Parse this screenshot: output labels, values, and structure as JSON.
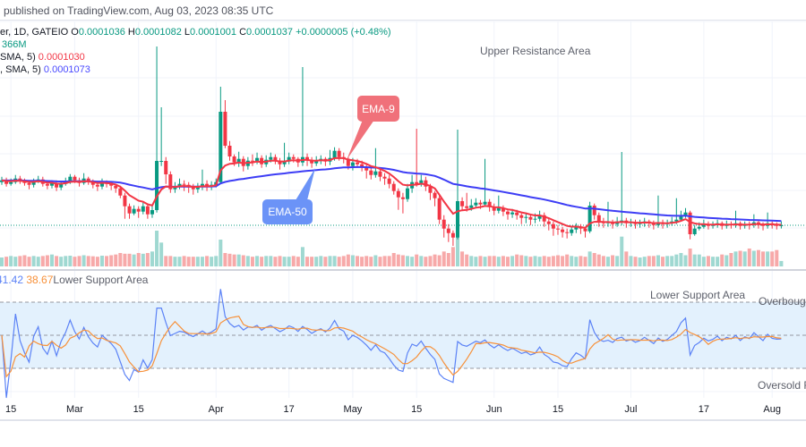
{
  "header": {
    "published": "published on TradingView.com, Aug 03, 2023 08:35 UTC"
  },
  "legend": {
    "symbol": "er, 1D, GATEIO",
    "ohlc": [
      {
        "k": "O",
        "v": "0.0001036"
      },
      {
        "k": "H",
        "v": "0.0001082"
      },
      {
        "k": "L",
        "v": "0.0001001"
      },
      {
        "k": "C",
        "v": "0.0001037"
      }
    ],
    "change": "+0.0000005 (+0.48%)",
    "volume": "366M",
    "ema9_label": "SMA, 5)",
    "ema9_value": "0.0001030",
    "ema50_label": ", SMA, 5)",
    "ema50_value": "0.0001073"
  },
  "annotations": {
    "upper_resistance": "Upper Resistance Area",
    "ema9_callout": "EMA-9",
    "ema50_callout": "EMA-50",
    "rsi_lower_support_left": "Lower Support Area",
    "rsi_lower_support_right": "Lower Support Area",
    "overbought": "Overbought",
    "oversold": "Oversold R"
  },
  "rsi_legend": {
    "rsi_value": "41.42",
    "ma_value": "38.67"
  },
  "colors": {
    "up": "#089981",
    "down": "#f23645",
    "vol_up": "#9fd8d1",
    "vol_down": "#f7a9a9",
    "ema9": "#f23645",
    "ema50": "#3d3df5",
    "rsi": "#5b82f6",
    "rsi_ma": "#f7913a",
    "rsi_band": "#e3f1fd",
    "callout_ema9": "#f0717a",
    "callout_ema50": "#6b93f7"
  },
  "chart_data": {
    "type": "candlestick",
    "interval": "1D",
    "last_date": "2023-08-03",
    "indicators": [
      "EMA 9",
      "EMA 50",
      "Volume",
      "RSI 14",
      "RSI MA"
    ],
    "rsi_levels": [
      70,
      50,
      30
    ],
    "x_ticks": [
      {
        "label": "15",
        "date": "2023-02-15"
      },
      {
        "label": "Mar",
        "date": "2023-03-01"
      },
      {
        "label": "15",
        "date": "2023-03-15"
      },
      {
        "label": "Apr",
        "date": "2023-04-01"
      },
      {
        "label": "17",
        "date": "2023-04-17"
      },
      {
        "label": "May",
        "date": "2023-05-01"
      },
      {
        "label": "15",
        "date": "2023-05-15"
      },
      {
        "label": "Jun",
        "date": "2023-06-01"
      },
      {
        "label": "15",
        "date": "2023-06-15"
      },
      {
        "label": "Jul",
        "date": "2023-07-01"
      },
      {
        "label": "17",
        "date": "2023-07-17"
      },
      {
        "label": "Aug",
        "date": "2023-08-01"
      }
    ],
    "candle_fields": [
      "open",
      "high",
      "low",
      "close"
    ],
    "candles": [
      [
        0.000152,
        0.000158,
        0.000149,
        0.000154
      ],
      [
        0.000154,
        0.000157,
        0.000147,
        0.00015
      ],
      [
        0.00015,
        0.000156,
        0.000148,
        0.000152
      ],
      [
        0.000152,
        0.00016,
        0.00015,
        0.000156
      ],
      [
        0.000156,
        0.000159,
        0.00015,
        0.000153
      ],
      [
        0.000153,
        0.000156,
        0.000148,
        0.000151
      ],
      [
        0.000151,
        0.000154,
        0.000144,
        0.000149
      ],
      [
        0.000149,
        0.000156,
        0.000146,
        0.000153
      ],
      [
        0.000153,
        0.000159,
        0.000151,
        0.000155
      ],
      [
        0.000155,
        0.000158,
        0.000147,
        0.00015
      ],
      [
        0.00015,
        0.000153,
        0.000144,
        0.000148
      ],
      [
        0.000148,
        0.000154,
        0.000145,
        0.000151
      ],
      [
        0.000151,
        0.000154,
        0.000142,
        0.000146
      ],
      [
        0.000146,
        0.000153,
        0.000143,
        0.00015
      ],
      [
        0.00015,
        0.000157,
        0.000148,
        0.000153
      ],
      [
        0.000153,
        0.000161,
        0.00015,
        0.000158
      ],
      [
        0.000158,
        0.00016,
        0.000151,
        0.000154
      ],
      [
        0.000154,
        0.000157,
        0.000147,
        0.000151
      ],
      [
        0.000151,
        0.000162,
        0.000149,
        0.000156
      ],
      [
        0.000156,
        0.000158,
        0.000149,
        0.000152
      ],
      [
        0.000152,
        0.000155,
        0.000145,
        0.000149
      ],
      [
        0.000149,
        0.000152,
        0.000142,
        0.000147
      ],
      [
        0.000147,
        0.000156,
        0.000144,
        0.000152
      ],
      [
        0.000152,
        0.000154,
        0.000146,
        0.00015
      ],
      [
        0.00015,
        0.000153,
        0.000143,
        0.000148
      ],
      [
        0.000148,
        0.00015,
        0.00014,
        0.000145
      ],
      [
        0.000145,
        0.000148,
        0.000134,
        0.000137
      ],
      [
        0.000137,
        0.00014,
        0.000111,
        0.000125
      ],
      [
        0.000125,
        0.000128,
        0.000111,
        0.000117
      ],
      [
        0.000117,
        0.000126,
        0.000115,
        0.000122
      ],
      [
        0.000122,
        0.000125,
        0.000112,
        0.000119
      ],
      [
        0.000119,
        0.00013,
        0.000116,
        0.000125
      ],
      [
        0.000125,
        0.000128,
        0.000111,
        0.000116
      ],
      [
        0.000116,
        0.000126,
        0.000112,
        0.0001207
      ],
      [
        0.0001207,
        0.0003037,
        0.000118,
        0.0001757
      ],
      [
        0.0001757,
        0.0002357,
        0.00017,
        0.0001757
      ],
      [
        0.0001757,
        0.00018,
        0.00015,
        0.0001607
      ],
      [
        0.0001607,
        0.000164,
        0.00014,
        0.000144
      ],
      [
        0.000144,
        0.000152,
        0.00014,
        0.000147
      ],
      [
        0.000147,
        0.000156,
        0.000144,
        0.00015
      ],
      [
        0.00015,
        0.000154,
        0.000142,
        0.000149
      ],
      [
        0.000149,
        0.000152,
        0.00014,
        0.000146
      ],
      [
        0.000146,
        0.00015,
        0.000138,
        0.000144
      ],
      [
        0.000144,
        0.000151,
        0.00014,
        0.000147
      ],
      [
        0.000147,
        0.000166,
        0.000143,
        0.00015
      ],
      [
        0.00015,
        0.000154,
        0.000142,
        0.000147
      ],
      [
        0.000147,
        0.000153,
        0.000143,
        0.000149
      ],
      [
        0.000149,
        0.000156,
        0.000146,
        0.000152
      ],
      [
        0.000152,
        0.0002587,
        0.00015,
        0.0002307
      ],
      [
        0.0002307,
        0.0002437,
        0.00019,
        0.0001927
      ],
      [
        0.0001927,
        0.000198,
        0.000176,
        0.0001807
      ],
      [
        0.0001807,
        0.000183,
        0.00017,
        0.000174
      ],
      [
        0.000174,
        0.000186,
        0.000169,
        0.000178
      ],
      [
        0.000178,
        0.000181,
        0.000164,
        0.00017
      ],
      [
        0.00017,
        0.00018,
        0.000166,
        0.000176
      ],
      [
        0.000176,
        0.000183,
        0.00017,
        0.000175
      ],
      [
        0.000175,
        0.000185,
        0.000172,
        0.000179
      ],
      [
        0.000179,
        0.000182,
        0.000168,
        0.000172
      ],
      [
        0.000172,
        0.000182,
        0.000169,
        0.000177
      ],
      [
        0.000177,
        0.000185,
        0.000174,
        0.00018
      ],
      [
        0.00018,
        0.000183,
        0.000172,
        0.000176
      ],
      [
        0.000176,
        0.000179,
        0.000166,
        0.000172
      ],
      [
        0.000172,
        0.000196,
        0.000169,
        0.000175
      ],
      [
        0.000175,
        0.000185,
        0.000172,
        0.00018
      ],
      [
        0.00018,
        0.000183,
        0.000174,
        0.000178
      ],
      [
        0.000178,
        0.00018,
        0.000169,
        0.000174
      ],
      [
        0.000174,
        0.0002807,
        0.00017,
        0.00018
      ],
      [
        0.00018,
        0.000184,
        0.00017,
        0.000177
      ],
      [
        0.000177,
        0.00018,
        0.000168,
        0.000173
      ],
      [
        0.000173,
        0.000181,
        0.00017,
        0.000176
      ],
      [
        0.000176,
        0.000182,
        0.000172,
        0.000178
      ],
      [
        0.000178,
        0.00018,
        0.00017,
        0.000175
      ],
      [
        0.000175,
        0.000188,
        0.000171,
        0.000179
      ],
      [
        0.000179,
        0.000191,
        0.000176,
        0.000187
      ],
      [
        0.000187,
        0.00019,
        0.000176,
        0.00018
      ],
      [
        0.00018,
        0.000185,
        0.000173,
        0.000178
      ],
      [
        0.000178,
        0.00018,
        0.000166,
        0.00017
      ],
      [
        0.00017,
        0.000179,
        0.000165,
        0.000174
      ],
      [
        0.000174,
        0.000178,
        0.000168,
        0.000172
      ],
      [
        0.000172,
        0.000176,
        0.000164,
        0.000169
      ],
      [
        0.000169,
        0.000172,
        0.000156,
        0.000165
      ],
      [
        0.000165,
        0.000168,
        0.000155,
        0.00016
      ],
      [
        0.00016,
        0.00019,
        0.000157,
        0.000164
      ],
      [
        0.000164,
        0.000168,
        0.000153,
        0.000158
      ],
      [
        0.000158,
        0.000162,
        0.000149,
        0.000156
      ],
      [
        0.000156,
        0.00016,
        0.000145,
        0.00015
      ],
      [
        0.00015,
        0.000153,
        0.000138,
        0.000142
      ],
      [
        0.000142,
        0.000145,
        0.000121,
        0.000135
      ],
      [
        0.000135,
        0.00014,
        0.000117,
        0.000133
      ],
      [
        0.000133,
        0.00015,
        0.00013,
        0.000145
      ],
      [
        0.000145,
        0.00016,
        0.00014,
        0.000152
      ],
      [
        0.000152,
        0.0002117,
        0.000147,
        0.00015
      ],
      [
        0.00015,
        0.00016,
        0.000147,
        0.000154
      ],
      [
        0.000154,
        0.000158,
        0.000142,
        0.000147
      ],
      [
        0.000147,
        0.00015,
        0.000132,
        0.00014
      ],
      [
        0.00014,
        0.000142,
        0.000125,
        0.000134
      ],
      [
        0.000134,
        0.000138,
        0.000105,
        0.00011
      ],
      [
        0.00011,
        0.000115,
        9e-05,
        0.0001
      ],
      [
        0.0001,
        0.000105,
        8.5e-05,
        9.5e-05
      ],
      [
        9.5e-05,
        9.8e-05,
        8.07e-05,
        9e-05
      ],
      [
        9e-05,
        0.0002107,
        8.8e-05,
        0.0001307
      ],
      [
        0.0001307,
        0.000135,
        0.00012,
        0.000125
      ],
      [
        0.000125,
        0.00014,
        0.000119,
        0.000123
      ],
      [
        0.000123,
        0.000133,
        0.00012,
        0.000126
      ],
      [
        0.000126,
        0.000134,
        0.000123,
        0.000129
      ],
      [
        0.000129,
        0.000132,
        0.000122,
        0.000127
      ],
      [
        0.000127,
        0.000178,
        0.000125,
        0.00013
      ],
      [
        0.00013,
        0.000133,
        0.000119,
        0.000124
      ],
      [
        0.000124,
        0.000128,
        0.000115,
        0.00012
      ],
      [
        0.00012,
        0.000137,
        0.000117,
        0.000123
      ],
      [
        0.000123,
        0.000126,
        0.000114,
        0.000119
      ],
      [
        0.000119,
        0.000122,
        0.00011,
        0.000116
      ],
      [
        0.000116,
        0.000122,
        0.000112,
        0.000118
      ],
      [
        0.000118,
        0.000121,
        0.00011,
        0.000115
      ],
      [
        0.000115,
        0.000117,
        0.000105,
        0.000112
      ],
      [
        0.000112,
        0.000118,
        0.000106,
        0.000113
      ],
      [
        0.000113,
        0.000116,
        0.000104,
        0.00011
      ],
      [
        0.00011,
        0.000117,
        0.000106,
        0.000111
      ],
      [
        0.000111,
        0.00012,
        0.000108,
        0.000115
      ],
      [
        0.000115,
        0.000118,
        0.000102,
        0.000108
      ],
      [
        0.000108,
        0.000112,
        9.8e-05,
        0.000105
      ],
      [
        0.000105,
        0.000108,
        9.2e-05,
        0.0001
      ],
      [
        0.0001,
        0.000104,
        9.3e-05,
        9.9e-05
      ],
      [
        9.9e-05,
        0.000102,
        9e-05,
        9.6e-05
      ],
      [
        9.6e-05,
        0.0001,
        8.9e-05,
        9.5e-05
      ],
      [
        9.5e-05,
        0.000103,
        9.2e-05,
        9.9e-05
      ],
      [
        9.9e-05,
        0.000106,
        9.5e-05,
        0.000102
      ],
      [
        0.000102,
        0.000105,
        9.4e-05,
        0.0001
      ],
      [
        0.0001,
        0.000102,
        9e-05,
        9.7e-05
      ],
      [
        9.7e-05,
        0.00013,
        9.5e-05,
        0.0001257
      ],
      [
        0.0001257,
        0.000128,
        0.00011,
        0.000115
      ],
      [
        0.000115,
        0.000118,
        0.000102,
        0.000108
      ],
      [
        0.000108,
        0.000112,
        0.000101,
        0.000106
      ],
      [
        0.000106,
        0.00013,
        0.000102,
        0.000107
      ],
      [
        0.000107,
        0.00011,
        0.0001,
        0.000105
      ],
      [
        0.000105,
        0.000113,
        0.000102,
        0.000108
      ],
      [
        0.000108,
        0.0001857,
        0.000104,
        0.000109
      ],
      [
        0.000109,
        0.000112,
        0.000101,
        0.000106
      ],
      [
        0.000106,
        0.000111,
        0.000102,
        0.000107
      ],
      [
        0.000107,
        0.00011,
        0.0001,
        0.000105
      ],
      [
        0.000105,
        0.00011,
        0.000101,
        0.000106
      ],
      [
        0.000106,
        0.000112,
        0.000102,
        0.000108
      ],
      [
        0.000108,
        0.00011,
        0.000101,
        0.000106
      ],
      [
        0.000106,
        0.000109,
        9.9e-05,
        0.000104
      ],
      [
        0.000104,
        0.000137,
        0.000101,
        0.000107
      ],
      [
        0.000107,
        0.00011,
        0.0001,
        0.000105
      ],
      [
        0.000105,
        0.00011,
        0.000101,
        0.000106
      ],
      [
        0.000106,
        0.000113,
        0.000103,
        0.000108
      ],
      [
        0.000108,
        0.000134,
        0.000105,
        0.00011
      ],
      [
        0.00011,
        0.00012,
        0.000109,
        0.000115
      ],
      [
        0.000115,
        0.000123,
        0.000112,
        0.000118
      ],
      [
        0.000118,
        0.00012,
        8.8e-05,
        9.37e-05
      ],
      [
        9.37e-05,
        0.000104,
        9.2e-05,
        0.0001
      ],
      [
        0.0001,
        0.000107,
        9.8e-05,
        0.000102
      ],
      [
        0.000102,
        0.00011,
        0.0001,
        0.000105
      ],
      [
        0.000105,
        0.000108,
        9.9e-05,
        0.000103
      ],
      [
        0.000103,
        0.000108,
        0.0001,
        0.000104
      ],
      [
        0.000104,
        0.00011,
        0.000101,
        0.000106
      ],
      [
        0.000106,
        0.000108,
        9.9e-05,
        0.000103
      ],
      [
        0.000103,
        0.000109,
        0.0001,
        0.000105
      ],
      [
        0.000105,
        0.000108,
        0.0001,
        0.000104
      ],
      [
        0.000104,
        0.00012,
        0.000101,
        0.000106
      ],
      [
        0.000106,
        0.000108,
        9.9e-05,
        0.000103
      ],
      [
        0.000103,
        0.000108,
        0.0001,
        0.000105
      ],
      [
        0.000105,
        0.000108,
        9.9e-05,
        0.000104
      ],
      [
        0.000104,
        0.000116,
        0.000101,
        0.000107
      ],
      [
        0.000107,
        0.000109,
        0.0001,
        0.000105
      ],
      [
        0.000105,
        0.000107,
        9.8e-05,
        0.000103
      ],
      [
        0.000103,
        0.000118,
        0.0001,
        0.000106
      ],
      [
        0.000106,
        0.000108,
        0.0001,
        0.000104
      ],
      [
        0.000104,
        0.000107,
        9.9e-05,
        0.0001036
      ],
      [
        0.0001036,
        0.0001082,
        0.0001001,
        0.0001037
      ]
    ],
    "volume_unit": "M",
    "volume": [
      600,
      650,
      700,
      650,
      700,
      750,
      650,
      700,
      650,
      700,
      750,
      800,
      700,
      650,
      700,
      720,
      650,
      700,
      750,
      700,
      680,
      650,
      720,
      700,
      750,
      800,
      900,
      850,
      850,
      800,
      900,
      850,
      900,
      1000,
      2400,
      1600,
      700,
      700,
      650,
      650,
      700,
      650,
      650,
      650,
      650,
      700,
      650,
      700,
      1800,
      900,
      850,
      800,
      800,
      750,
      700,
      650,
      700,
      650,
      700,
      700,
      650,
      700,
      650,
      650,
      700,
      650,
      1300,
      650,
      650,
      650,
      700,
      650,
      700,
      700,
      650,
      700,
      800,
      750,
      700,
      650,
      700,
      650,
      750,
      650,
      700,
      700,
      900,
      800,
      750,
      700,
      650,
      800,
      700,
      650,
      700,
      800,
      750,
      1000,
      900,
      1300,
      2100,
      1000,
      800,
      700,
      650,
      700,
      650,
      700,
      700,
      650,
      700,
      650,
      700,
      800,
      750,
      700,
      650,
      700,
      650,
      700,
      650,
      700,
      750,
      700,
      800,
      700,
      650,
      700,
      650,
      1000,
      900,
      800,
      700,
      650,
      750,
      700,
      2000,
      1000,
      700,
      650,
      600,
      650,
      700,
      700,
      750,
      650,
      700,
      700,
      800,
      900,
      750,
      1200,
      800,
      800,
      650,
      700,
      650,
      650,
      800,
      750,
      900,
      1000,
      1050,
      1000,
      1200,
      1050,
      1100,
      1000,
      1000,
      1000,
      1100,
      366
    ]
  }
}
